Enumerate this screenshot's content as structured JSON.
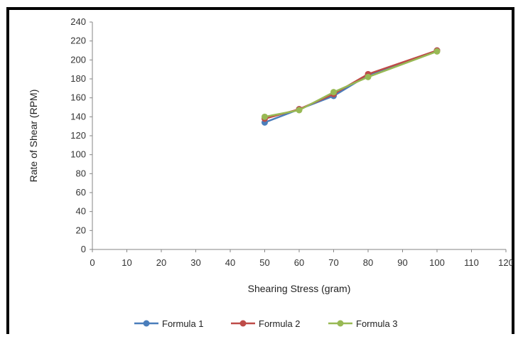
{
  "chart_data": {
    "type": "line",
    "xlabel": "Shearing Stress (gram)",
    "ylabel": "Rate of Shear (RPM)",
    "xlim": [
      0,
      120
    ],
    "ylim": [
      0,
      240
    ],
    "xticks": [
      0,
      10,
      20,
      30,
      40,
      50,
      60,
      70,
      80,
      90,
      100,
      110,
      120
    ],
    "yticks": [
      0,
      20,
      40,
      60,
      80,
      100,
      120,
      140,
      160,
      180,
      200,
      220,
      240
    ],
    "grid": false,
    "legend_position": "bottom",
    "series": [
      {
        "name": "Formula 1",
        "color": "#4a7ebb",
        "x": [
          50,
          60,
          70,
          80,
          100
        ],
        "y": [
          134,
          148,
          162,
          184,
          210
        ]
      },
      {
        "name": "Formula 2",
        "color": "#be4b48",
        "x": [
          50,
          60,
          70,
          80,
          100
        ],
        "y": [
          138,
          148,
          164,
          185,
          210
        ]
      },
      {
        "name": "Formula 3",
        "color": "#98b954",
        "x": [
          50,
          60,
          70,
          80,
          100
        ],
        "y": [
          140,
          147,
          166,
          182,
          209
        ]
      }
    ]
  }
}
